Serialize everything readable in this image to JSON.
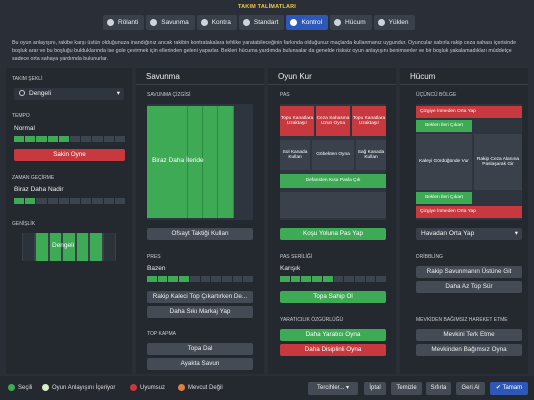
{
  "header": {
    "title": "TAKIM TALİMATLARI"
  },
  "tabs": [
    {
      "label": "Rölanti",
      "selected": false
    },
    {
      "label": "Savunma",
      "selected": false
    },
    {
      "label": "Kontra",
      "selected": false
    },
    {
      "label": "Standart",
      "selected": false
    },
    {
      "label": "Kontrol",
      "selected": true
    },
    {
      "label": "Hücum",
      "selected": false
    },
    {
      "label": "Yüklen",
      "selected": false
    }
  ],
  "description": "Bu oyun anlayışını, rakibe karşı üstün olduğunuza inandığınız ancak rakibin kontratakalara tehlike yaratabileceğinin farkında olduğunuz maçlarda kullanmanız uygundur. Oyuncular sabırla rakip ceza sahası içerisinde boşluk arar ve bu boşluğu bulduklarında ise gole çevirmek için ellerinden geleni yaparlar. Bekleri hücuma yardımda bulunsalar da genelde risksiz oyun anlayışını benimserler ve bir boşluk yakalamadıkları müddetçe sadece orta sahaya yardımda bulunurlar.",
  "left": {
    "takim_sekli_label": "TAKIM ŞEKLİ",
    "takim_sekli_value": "Dengeli",
    "tempo_label": "TEMPO",
    "tempo_value": "Normal",
    "tempo_level": 0.45,
    "tempo_button": "Sakin Oyne",
    "zaman_label": "ZAMAN GEÇİRME",
    "zaman_value": "Biraz Daha Nadir",
    "zaman_level": 0.2,
    "genislik_label": "GENİŞLİK",
    "genislik_value": "Dengeli"
  },
  "savunma": {
    "header": "Savunma",
    "cizgi_label": "SAVUNMA ÇİZGİSİ",
    "pitch_label": "Biraz Daha İleride",
    "ofsayt_button": "Ofsayt Taktiği Kullan",
    "pres_label": "PRES",
    "pres_value": "Bazen",
    "pres_level": 0.4,
    "rakip_kaleci_button": "Rakip Kaleci Top Çıkartırken De...",
    "siki_markaj_button": "Daha Sıkı Markaj Yap",
    "top_kapma_label": "TOP KAPMA",
    "topa_dal_button": "Topa Dal",
    "ayakta_savun_button": "Ayakta Savun"
  },
  "oyunkur": {
    "header": "Oyun Kur",
    "pas_label": "PAS",
    "cells": {
      "top_left": "Topu Kanatlara Uzaktaşır",
      "top_mid": "Ceza Sahasına Uzun Oyna",
      "top_right": "Topu Kanatlara Uzaktaşır",
      "mid_left": "Sol Kanada Kullan",
      "mid_center": "Göbekten Oyna",
      "mid_right": "Sağ Kanada Kullan",
      "bottom": "Defansten Kısa Pasla Çık"
    },
    "kosu_button": "Koşu Yoluna Pas Yap",
    "pas_seri_label": "PAS SERİLİĞİ",
    "pas_seri_value": "Karışık",
    "pas_seri_level": 0.5,
    "topa_sahip_button": "Topa Sahip Ol",
    "yaraticilik_label": "YARATICILIK ÖZGÜRLÜĞÜ",
    "yaratici_button": "Daha Yaratıcı Oyna",
    "disiplinli_button": "Daha Disiplinli Oyna"
  },
  "hucum": {
    "header": "Hücum",
    "ucuncu_label": "ÜÇÜNCÜ BÖLGE",
    "cells": {
      "top_a": "Çizgiye İnmeden Orta Yap",
      "top_b": "Beklen İleri Çıkart",
      "mid_left": "Kaleyi Gördüğünde Vur",
      "mid_right": "Rakip Ceza Alanına Paslaşarak Gir",
      "bot_a": "Beklen İleri Çıkart",
      "bot_b": "Çizgiye İnmeden Orta Yap"
    },
    "dropdown_value": "Havadan Orta Yap",
    "dribbling_label": "DRİBBLİNG",
    "rakip_savunma_button": "Rakip Savunmanın Üstüne Git",
    "az_top_sur_button": "Daha Az Top Sür",
    "mevkiden_label": "MEVKİDEN BAĞIMSIZ HAREKET ETME",
    "mevki_terk_button": "Mevkini Terk Etme",
    "mevki_bagimsiz_button": "Mevkinden Bağımsız Oyna"
  },
  "footer": {
    "legend": [
      {
        "label": "Seçili",
        "color": "#3faa55"
      },
      {
        "label": "Oyun Anlayışını İçeriyor",
        "color": "#d8f0c8"
      },
      {
        "label": "Uyumsuz",
        "color": "#c8393f"
      },
      {
        "label": "Mevcut Değil",
        "color": "#e08040"
      }
    ],
    "tercihler": "Tercihler...",
    "iptal": "İptal",
    "temizle": "Temizle",
    "sifirla": "Sıfırla",
    "geri_al": "Geri Al",
    "tamam": "Tamam"
  },
  "colors": {
    "accent": "#2e58b8",
    "selected": "#3faa55",
    "incompatible": "#c8393f"
  }
}
